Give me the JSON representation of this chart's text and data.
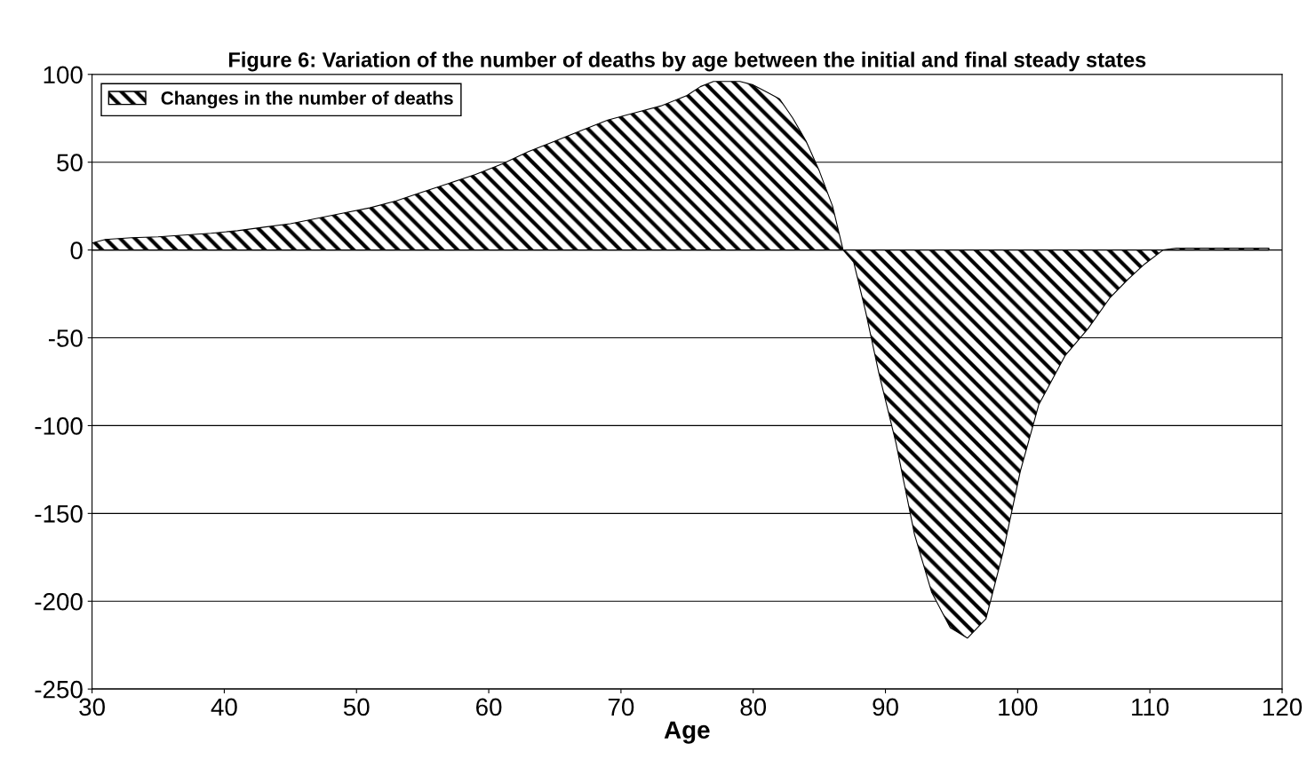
{
  "chart_data": {
    "type": "area",
    "title": "Figure 6: Variation of the number of deaths by age between the initial and final steady states",
    "xlabel": "Age",
    "x": [
      30,
      31,
      33,
      35,
      37,
      39,
      41,
      43,
      45,
      47,
      49,
      51,
      53,
      55,
      57,
      59,
      61,
      63,
      65,
      67,
      69,
      71,
      73,
      75,
      76,
      77,
      79,
      80,
      81,
      82,
      83,
      84,
      85,
      86,
      86.8,
      87.6,
      88.5,
      89.5,
      90.8,
      92.2,
      93.5,
      94.9,
      96.2,
      97.6,
      98.9,
      100.2,
      101.6,
      103.6,
      105.3,
      107,
      108.3,
      109.6,
      111,
      112,
      114,
      116,
      119
    ],
    "series": [
      {
        "name": "Changes in the number of deaths",
        "color": "#000000",
        "values": [
          4,
          6,
          7,
          7.5,
          8.5,
          9.5,
          11,
          13,
          15,
          18,
          21,
          24,
          28,
          33,
          38,
          43,
          49,
          56,
          62,
          68,
          74,
          78,
          82,
          88,
          93,
          96,
          96,
          94,
          90,
          86,
          75,
          62,
          45,
          25,
          0,
          -7,
          -35,
          -70,
          -110,
          -162,
          -195,
          -215,
          -221,
          -210,
          -172,
          -126,
          -88,
          -60,
          -45,
          -27,
          -17,
          -8,
          0,
          1,
          1,
          1,
          1
        ]
      }
    ],
    "xlim": [
      30,
      120
    ],
    "xticks": [
      30,
      40,
      50,
      60,
      70,
      80,
      90,
      100,
      110,
      120
    ],
    "ylim": [
      -250,
      100
    ],
    "yticks": [
      -250,
      -200,
      -150,
      -100,
      -50,
      0,
      50,
      100
    ],
    "grid": "y",
    "legend": "top left"
  }
}
